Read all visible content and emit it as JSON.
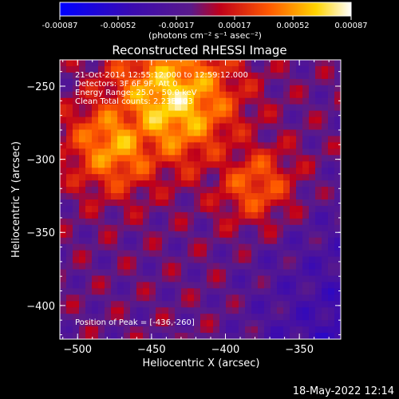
{
  "colorbar": {
    "ticks": [
      "-0.00087",
      "-0.00052",
      "-0.00017",
      "0.00017",
      "0.00052",
      "0.00087"
    ],
    "unit_label": "(photons cm⁻² s⁻¹ asec⁻²)",
    "colors": [
      "#0000ff",
      "#3b0bb0",
      "#5a1a8a",
      "#c0001a",
      "#ff5a00",
      "#ffd400",
      "#ffffff"
    ]
  },
  "chart_data": {
    "type": "heatmap",
    "title": "Reconstructed RHESSI Image",
    "xlabel": "Heliocentric X (arcsec)",
    "ylabel": "Heliocentric Y (arcsec)",
    "xlim": [
      -512,
      -322
    ],
    "ylim": [
      -423,
      -232
    ],
    "xticks": [
      -500,
      -450,
      -400,
      -350
    ],
    "yticks": [
      -250,
      -300,
      -350,
      -400
    ],
    "value_range": [
      -0.00087,
      0.00087
    ],
    "peak": [
      -436,
      -260
    ],
    "annotations": [
      "21-Oct-2014 12:55:12.000 to 12:59:12.000",
      "Detectors: 3F 6F 9F, Att 0",
      "Energy Range: 25.0 - 50.0 keV",
      "Clean     Total counts: 2.23E+03"
    ],
    "peak_label": "Position of Peak = [-436,-260]"
  },
  "footer": {
    "timestamp": "18-May-2022 12:14"
  }
}
